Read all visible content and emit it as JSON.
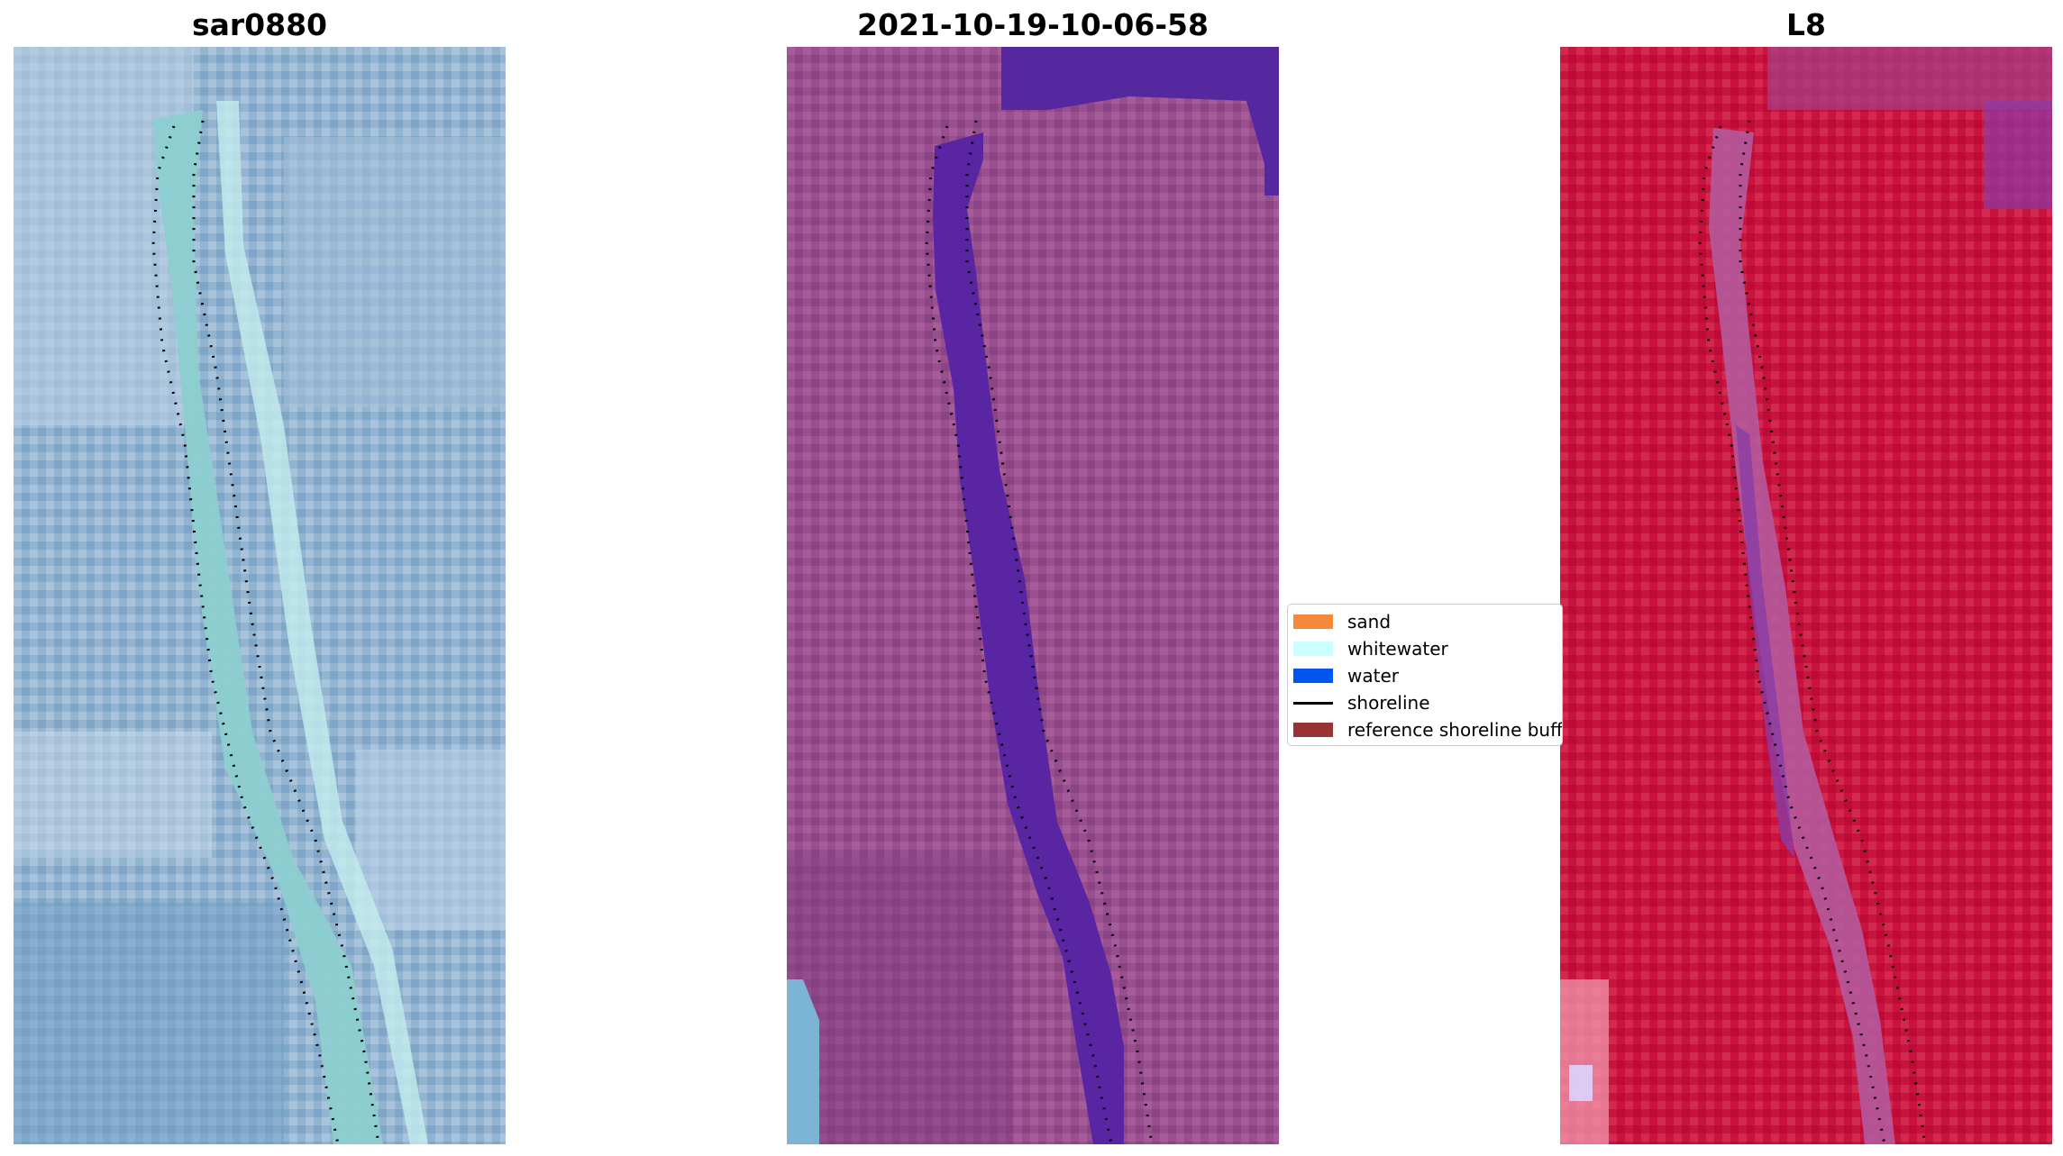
{
  "panels": [
    {
      "title": "sar0880"
    },
    {
      "title": "2021-10-19-10-06-58"
    },
    {
      "title": "L8"
    }
  ],
  "legend": {
    "items": [
      {
        "label": "sand",
        "color": "#f5883a"
      },
      {
        "label": "whitewater",
        "color": "#c8ffff"
      },
      {
        "label": "water",
        "color": "#0055ee"
      },
      {
        "label": "shoreline",
        "color": "#000000"
      },
      {
        "label": "reference shoreline buffer",
        "color": "#993333"
      }
    ]
  },
  "colors": {
    "rgb_land": "#8fb0cc",
    "rgb_river": "#8ccfd0",
    "class_land": "#9a4f8e",
    "class_water": "#5a25a2",
    "class_topright": "#5628a0",
    "mndwi_land": "#c8133f",
    "mndwi_water": "#8a3ca5"
  }
}
